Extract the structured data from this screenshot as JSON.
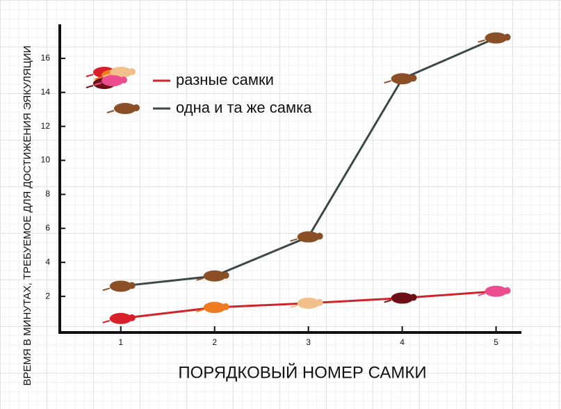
{
  "chart_data": {
    "type": "line",
    "x_label": "ПОРЯДКОВЫЙ НОМЕР САМКИ",
    "y_label": "ВРЕМЯ В МИНУТАХ, ТРЕБУЕМОЕ ДЛЯ ДОСТИЖЕНИЯ ЭЯКУЛЯЦИИ",
    "x": [
      1,
      2,
      3,
      4,
      5
    ],
    "series": [
      {
        "name": "разные самки",
        "color": "#d0242b",
        "values": [
          0.7,
          1.35,
          1.6,
          1.9,
          2.3
        ],
        "marker_colors": [
          "#d8202a",
          "#f07a20",
          "#f2c08a",
          "#6e0f17",
          "#ec4d8e"
        ]
      },
      {
        "name": "одна и та же самка",
        "color": "#3c4848",
        "values": [
          2.6,
          3.2,
          5.5,
          14.8,
          17.2
        ],
        "marker_colors": [
          "#8a4f26",
          "#8a4f26",
          "#8a4f26",
          "#8a4f26",
          "#8a4f26"
        ]
      }
    ],
    "xlim": [
      0.35,
      5.27
    ],
    "xticks": [
      1,
      2,
      3,
      4,
      5
    ],
    "ylim": [
      0,
      18
    ],
    "yticks": [
      2,
      4,
      6,
      8,
      10,
      12,
      14,
      16
    ],
    "legend": "upper-left"
  }
}
